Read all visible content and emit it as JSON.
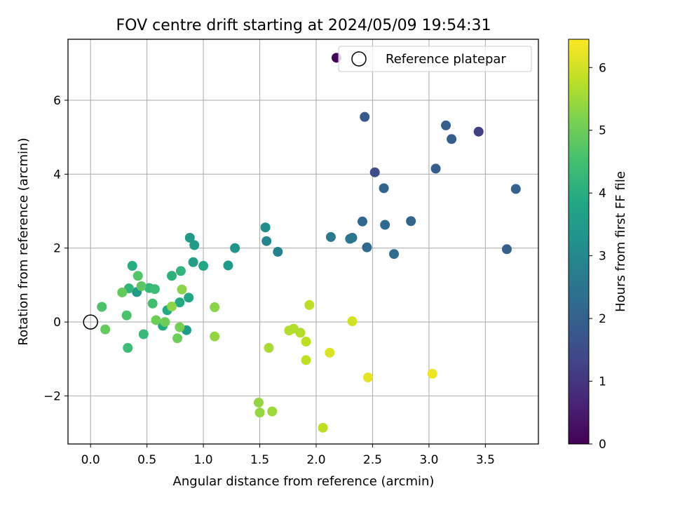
{
  "chart_data": {
    "type": "scatter",
    "title": "FOV centre drift starting at 2024/05/09 19:54:31",
    "xlabel": "Angular distance from reference (arcmin)",
    "ylabel": "Rotation from reference (arcmin)",
    "xlim": [
      -0.2,
      3.97
    ],
    "ylim": [
      -3.3,
      7.65
    ],
    "xticks": [
      "0.0",
      "0.5",
      "1.0",
      "1.5",
      "2.0",
      "2.5",
      "3.0",
      "3.5"
    ],
    "xtick_values": [
      0,
      0.5,
      1.0,
      1.5,
      2.0,
      2.5,
      3.0,
      3.5
    ],
    "yticks": [
      "−2",
      "0",
      "2",
      "4",
      "6"
    ],
    "ytick_values": [
      -2,
      0,
      2,
      4,
      6
    ],
    "grid": true,
    "legend": {
      "placement": "top-right",
      "label": "Reference platepar",
      "marker": "open-circle"
    },
    "reference_point": {
      "x": 0,
      "y": 0
    },
    "colorbar": {
      "label": "Hours from first FF file",
      "colormap": "viridis",
      "range": [
        0,
        6.45
      ],
      "ticks": [
        "0",
        "1",
        "2",
        "3",
        "4",
        "5",
        "6"
      ],
      "tick_values": [
        0,
        1,
        2,
        3,
        4,
        5,
        6
      ]
    },
    "series": [
      {
        "points": [
          {
            "x": 2.18,
            "y": 7.15,
            "c": 0.1
          },
          {
            "x": 3.44,
            "y": 5.15,
            "c": 1.2
          },
          {
            "x": 2.52,
            "y": 4.05,
            "c": 1.5
          },
          {
            "x": 2.43,
            "y": 5.55,
            "c": 1.8
          },
          {
            "x": 3.15,
            "y": 5.32,
            "c": 1.9
          },
          {
            "x": 3.2,
            "y": 4.95,
            "c": 1.9
          },
          {
            "x": 3.06,
            "y": 4.15,
            "c": 1.9
          },
          {
            "x": 3.77,
            "y": 3.6,
            "c": 2.0
          },
          {
            "x": 3.69,
            "y": 1.97,
            "c": 1.9
          },
          {
            "x": 2.6,
            "y": 3.62,
            "c": 2.1
          },
          {
            "x": 2.84,
            "y": 2.73,
            "c": 2.1
          },
          {
            "x": 2.41,
            "y": 2.72,
            "c": 2.2
          },
          {
            "x": 2.61,
            "y": 2.63,
            "c": 2.2
          },
          {
            "x": 2.45,
            "y": 2.02,
            "c": 2.2
          },
          {
            "x": 2.69,
            "y": 1.84,
            "c": 2.3
          },
          {
            "x": 2.3,
            "y": 2.25,
            "c": 2.5
          },
          {
            "x": 2.32,
            "y": 2.28,
            "c": 2.5
          },
          {
            "x": 2.13,
            "y": 2.3,
            "c": 2.6
          },
          {
            "x": 1.66,
            "y": 1.9,
            "c": 2.8
          },
          {
            "x": 1.56,
            "y": 2.19,
            "c": 2.9
          },
          {
            "x": 1.55,
            "y": 2.56,
            "c": 3.1
          },
          {
            "x": 1.28,
            "y": 2.0,
            "c": 3.3
          },
          {
            "x": 1.22,
            "y": 1.53,
            "c": 3.5
          },
          {
            "x": 0.92,
            "y": 2.08,
            "c": 3.5
          },
          {
            "x": 0.88,
            "y": 2.28,
            "c": 3.5
          },
          {
            "x": 0.91,
            "y": 1.62,
            "c": 3.6
          },
          {
            "x": 1.0,
            "y": 1.52,
            "c": 3.8
          },
          {
            "x": 0.85,
            "y": -0.22,
            "c": 3.5
          },
          {
            "x": 0.87,
            "y": 0.66,
            "c": 3.8
          },
          {
            "x": 0.79,
            "y": 0.53,
            "c": 3.9
          },
          {
            "x": 0.68,
            "y": 0.32,
            "c": 3.9
          },
          {
            "x": 0.64,
            "y": -0.1,
            "c": 3.9
          },
          {
            "x": 0.72,
            "y": 1.25,
            "c": 4.1
          },
          {
            "x": 0.8,
            "y": 1.38,
            "c": 4.2
          },
          {
            "x": 0.41,
            "y": 0.81,
            "c": 3.5
          },
          {
            "x": 0.37,
            "y": 1.52,
            "c": 4.0
          },
          {
            "x": 0.34,
            "y": 0.91,
            "c": 4.2
          },
          {
            "x": 0.52,
            "y": 0.92,
            "c": 4.2
          },
          {
            "x": 0.57,
            "y": 0.89,
            "c": 4.4
          },
          {
            "x": 0.55,
            "y": 0.5,
            "c": 4.5
          },
          {
            "x": 0.47,
            "y": -0.33,
            "c": 4.3
          },
          {
            "x": 0.33,
            "y": -0.7,
            "c": 4.4
          },
          {
            "x": 0.32,
            "y": 0.18,
            "c": 4.6
          },
          {
            "x": 0.1,
            "y": 0.41,
            "c": 4.6
          },
          {
            "x": 0.42,
            "y": 1.25,
            "c": 4.7
          },
          {
            "x": 0.45,
            "y": 0.97,
            "c": 4.8
          },
          {
            "x": 0.28,
            "y": 0.8,
            "c": 4.9
          },
          {
            "x": 0.13,
            "y": -0.2,
            "c": 4.9
          },
          {
            "x": 0.58,
            "y": 0.05,
            "c": 5.0
          },
          {
            "x": 0.66,
            "y": 0.0,
            "c": 5.0
          },
          {
            "x": 0.77,
            "y": -0.44,
            "c": 5.0
          },
          {
            "x": 0.79,
            "y": -0.14,
            "c": 5.1
          },
          {
            "x": 0.81,
            "y": 0.88,
            "c": 5.3
          },
          {
            "x": 0.72,
            "y": 0.42,
            "c": 5.3
          },
          {
            "x": 1.1,
            "y": 0.4,
            "c": 5.3
          },
          {
            "x": 1.1,
            "y": -0.39,
            "c": 5.4
          },
          {
            "x": 1.49,
            "y": -2.18,
            "c": 5.4
          },
          {
            "x": 1.5,
            "y": -2.45,
            "c": 5.4
          },
          {
            "x": 1.61,
            "y": -2.42,
            "c": 5.5
          },
          {
            "x": 1.58,
            "y": -0.7,
            "c": 5.6
          },
          {
            "x": 1.76,
            "y": -0.23,
            "c": 5.7
          },
          {
            "x": 1.8,
            "y": -0.18,
            "c": 5.7
          },
          {
            "x": 1.86,
            "y": -0.29,
            "c": 5.7
          },
          {
            "x": 1.91,
            "y": -0.53,
            "c": 5.8
          },
          {
            "x": 1.91,
            "y": -1.03,
            "c": 5.8
          },
          {
            "x": 1.94,
            "y": 0.46,
            "c": 5.8
          },
          {
            "x": 2.06,
            "y": -2.86,
            "c": 5.8
          },
          {
            "x": 2.12,
            "y": -0.83,
            "c": 6.1
          },
          {
            "x": 2.32,
            "y": 0.02,
            "c": 6.0
          },
          {
            "x": 2.46,
            "y": -1.5,
            "c": 6.2
          },
          {
            "x": 3.03,
            "y": -1.4,
            "c": 6.3
          }
        ]
      }
    ]
  }
}
